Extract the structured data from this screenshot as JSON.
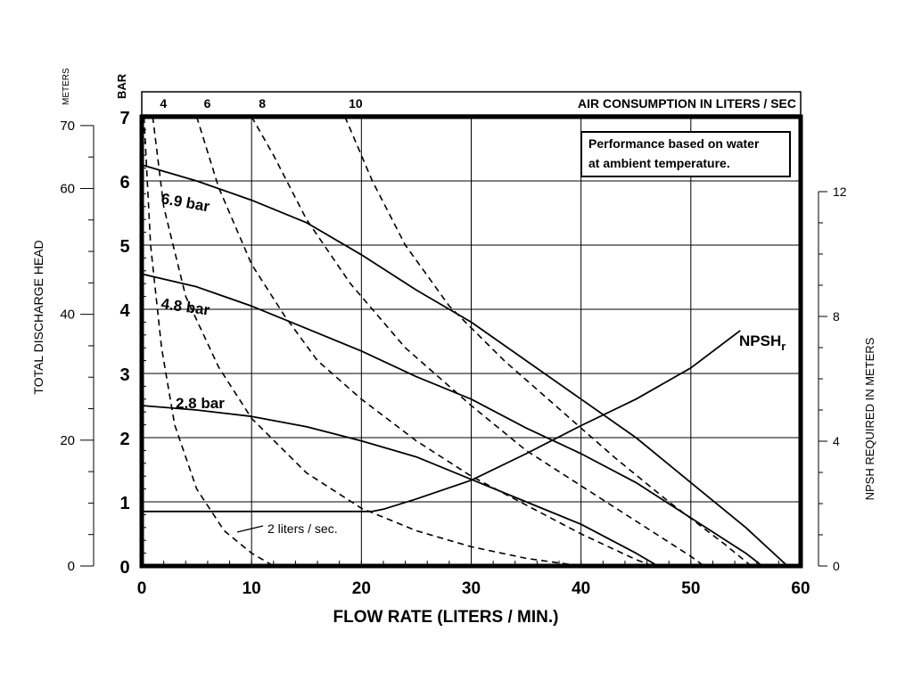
{
  "chart_data": {
    "type": "line",
    "title": "",
    "xlabel": "FLOW RATE (LITERS / MIN.)",
    "xlim": [
      0,
      60
    ],
    "x_ticks": [
      0,
      10,
      20,
      30,
      40,
      50,
      60
    ],
    "ylabel_left_bar": "BAR",
    "ylim_bar": [
      0,
      7
    ],
    "y_ticks_bar": [
      0,
      1,
      2,
      3,
      4,
      5,
      6,
      7
    ],
    "ylabel_left_meters_unit": "METERS",
    "ylabel_left_meters": "TOTAL DISCHARGE HEAD",
    "y_ticks_meters": [
      0,
      20,
      40,
      60,
      70
    ],
    "ylabel_right": "NPSH REQUIRED IN METERS",
    "ylim_right": [
      0,
      14.4
    ],
    "y_ticks_right": [
      0,
      4,
      8,
      12
    ],
    "top_axis_label": "AIR CONSUMPTION IN LITERS / SEC",
    "top_axis_ticks": [
      "4",
      "6",
      "8",
      "10"
    ],
    "note": "Performance based on water at ambient temperature.",
    "note_lines": [
      "Performance based on water",
      "at ambient temperature."
    ],
    "grid": true,
    "series": [
      {
        "name": "6.9 bar",
        "style": "solid",
        "points": [
          [
            0,
            6.25
          ],
          [
            5,
            6.0
          ],
          [
            10,
            5.7
          ],
          [
            15,
            5.35
          ],
          [
            20,
            4.85
          ],
          [
            25,
            4.3
          ],
          [
            30,
            3.8
          ],
          [
            35,
            3.2
          ],
          [
            40,
            2.6
          ],
          [
            45,
            2.0
          ],
          [
            50,
            1.3
          ],
          [
            55,
            0.6
          ],
          [
            58.8,
            0
          ]
        ]
      },
      {
        "name": "4.8 bar",
        "style": "solid",
        "points": [
          [
            0,
            4.55
          ],
          [
            5,
            4.35
          ],
          [
            10,
            4.05
          ],
          [
            15,
            3.7
          ],
          [
            20,
            3.35
          ],
          [
            25,
            2.95
          ],
          [
            30,
            2.6
          ],
          [
            35,
            2.15
          ],
          [
            40,
            1.75
          ],
          [
            45,
            1.3
          ],
          [
            50,
            0.75
          ],
          [
            55,
            0.2
          ],
          [
            56.5,
            0
          ]
        ]
      },
      {
        "name": "2.8 bar",
        "style": "solid",
        "points": [
          [
            0,
            2.5
          ],
          [
            5,
            2.43
          ],
          [
            10,
            2.33
          ],
          [
            15,
            2.17
          ],
          [
            20,
            1.95
          ],
          [
            25,
            1.7
          ],
          [
            30,
            1.35
          ],
          [
            35,
            1.0
          ],
          [
            40,
            0.65
          ],
          [
            45,
            0.2
          ],
          [
            47,
            0
          ]
        ]
      },
      {
        "name": "NPSHr",
        "label_main": "NPSH",
        "label_sub": "r",
        "style": "solid",
        "axis": "right",
        "points": [
          [
            0,
            1.75
          ],
          [
            21,
            1.75
          ],
          [
            22,
            1.82
          ],
          [
            25,
            2.15
          ],
          [
            30,
            2.75
          ],
          [
            35,
            3.6
          ],
          [
            40,
            4.5
          ],
          [
            45,
            5.35
          ],
          [
            50,
            6.35
          ],
          [
            54.5,
            7.55
          ]
        ]
      },
      {
        "name": "2 liters / sec.",
        "style": "dashed",
        "points": [
          [
            0.2,
            7
          ],
          [
            0.8,
            5.0
          ],
          [
            1.8,
            3.4
          ],
          [
            3,
            2.2
          ],
          [
            5,
            1.2
          ],
          [
            7.5,
            0.55
          ],
          [
            10,
            0.2
          ],
          [
            12,
            0
          ]
        ]
      },
      {
        "name": "4",
        "style": "dashed",
        "points": [
          [
            1,
            7
          ],
          [
            2,
            5.6
          ],
          [
            4,
            4.2
          ],
          [
            7,
            3.1
          ],
          [
            10,
            2.3
          ],
          [
            15,
            1.45
          ],
          [
            20,
            0.9
          ],
          [
            25,
            0.55
          ],
          [
            30,
            0.3
          ],
          [
            35,
            0.12
          ],
          [
            40,
            0
          ]
        ]
      },
      {
        "name": "6",
        "style": "dashed",
        "points": [
          [
            5,
            7
          ],
          [
            7,
            5.9
          ],
          [
            10,
            4.7
          ],
          [
            13,
            3.9
          ],
          [
            16,
            3.2
          ],
          [
            20,
            2.6
          ],
          [
            25,
            1.95
          ],
          [
            30,
            1.4
          ],
          [
            35,
            0.95
          ],
          [
            40,
            0.5
          ],
          [
            45,
            0.1
          ],
          [
            46.5,
            0
          ]
        ]
      },
      {
        "name": "8",
        "style": "dashed",
        "points": [
          [
            10,
            7
          ],
          [
            12,
            6.4
          ],
          [
            15,
            5.4
          ],
          [
            19,
            4.4
          ],
          [
            24,
            3.4
          ],
          [
            30,
            2.5
          ],
          [
            35,
            1.8
          ],
          [
            40,
            1.25
          ],
          [
            45,
            0.7
          ],
          [
            50,
            0.15
          ],
          [
            51.2,
            0
          ]
        ]
      },
      {
        "name": "10",
        "style": "dashed",
        "points": [
          [
            18.5,
            7
          ],
          [
            21,
            6.0
          ],
          [
            24,
            5.0
          ],
          [
            28,
            4.05
          ],
          [
            33,
            3.2
          ],
          [
            38,
            2.45
          ],
          [
            43,
            1.7
          ],
          [
            48,
            1.0
          ],
          [
            53,
            0.35
          ],
          [
            55.5,
            0
          ]
        ]
      }
    ],
    "labels": {
      "bar69": "6.9 bar",
      "bar48": "4.8 bar",
      "bar28": "2.8 bar",
      "two_lps": "2 liters / sec."
    }
  }
}
